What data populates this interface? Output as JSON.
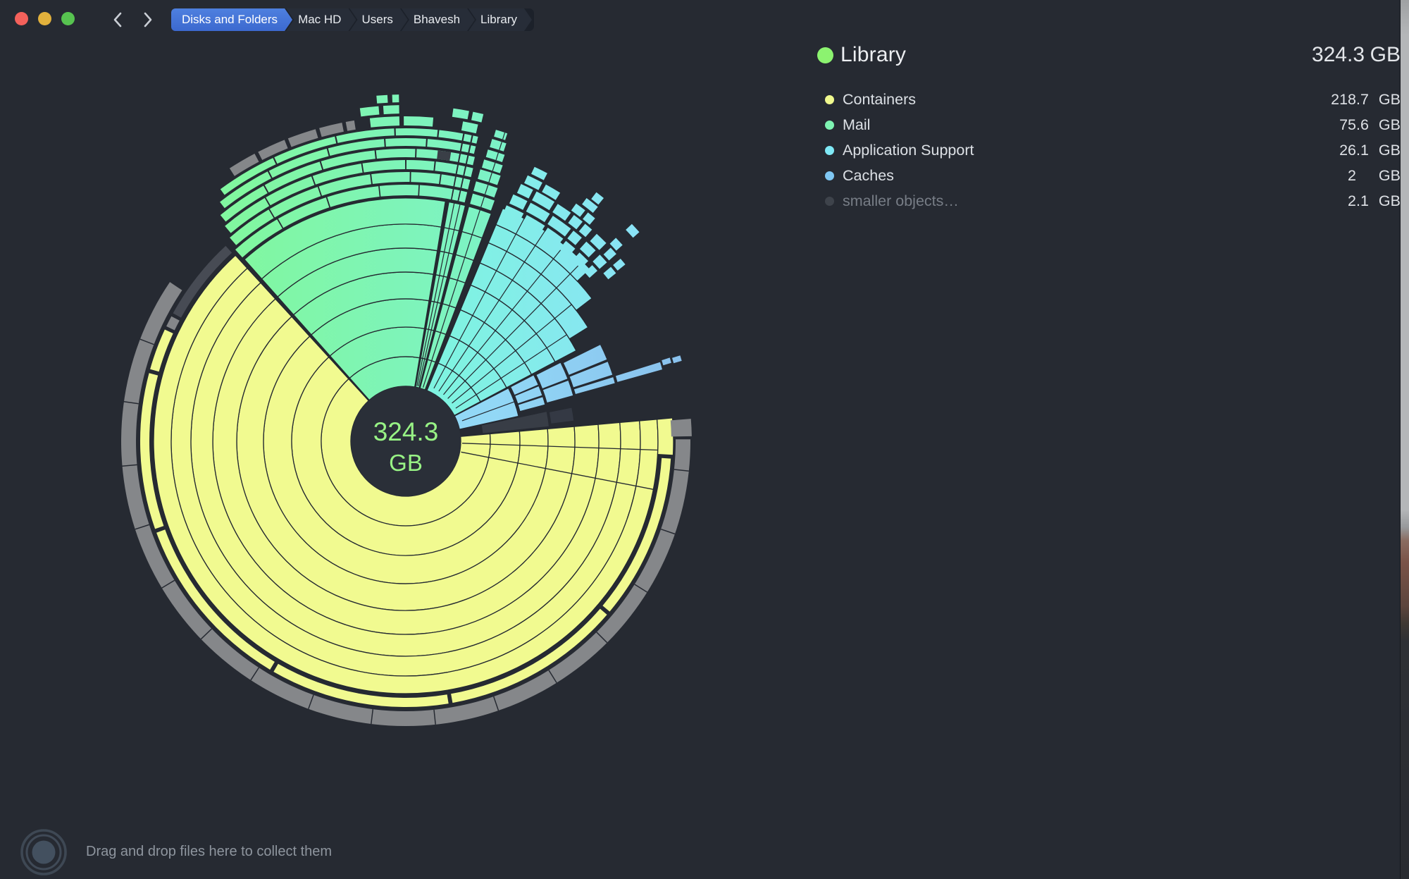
{
  "window": {
    "traffic_lights": {
      "close": "#F4615B",
      "minimize": "#E2B13C",
      "zoom": "#57C350"
    },
    "breadcrumb": [
      {
        "label": "Disks and Folders",
        "active": true
      },
      {
        "label": "Mac HD",
        "active": false
      },
      {
        "label": "Users",
        "active": false
      },
      {
        "label": "Bhavesh",
        "active": false
      },
      {
        "label": "Library",
        "active": false
      }
    ]
  },
  "legend": {
    "header": {
      "dot_color": "#8CF370",
      "label": "Library",
      "value_int": "324",
      "value_frac": ".3",
      "unit": "GB"
    },
    "items": [
      {
        "label": "Containers",
        "dot_color": "#F0F98E",
        "value_int": "218",
        "value_frac": ".7",
        "unit": "GB",
        "muted": false
      },
      {
        "label": "Mail",
        "dot_color": "#7EF3B2",
        "value_int": "75",
        "value_frac": ".6",
        "unit": "GB",
        "muted": false
      },
      {
        "label": "Application Support",
        "dot_color": "#7FE9F6",
        "value_int": "26",
        "value_frac": ".1",
        "unit": "GB",
        "muted": false
      },
      {
        "label": "Caches",
        "dot_color": "#7FC7F3",
        "value_int": "2",
        "value_frac": "",
        "unit": "GB",
        "muted": false
      },
      {
        "label": "smaller objects…",
        "dot_color": "#3E434B",
        "value_int": "2",
        "value_frac": ".1",
        "unit": "GB",
        "muted": true
      }
    ]
  },
  "chart_data": {
    "type": "sunburst",
    "title": "Library disk usage sunburst",
    "unit": "GB",
    "total": 324.3,
    "center_label": {
      "line1": "324.3",
      "line2": "GB",
      "color": "#98F385"
    },
    "items": [
      {
        "name": "Containers",
        "value": 218.7,
        "color": "#F1FA90",
        "color_end": "#F1FA90",
        "display_start_deg": 85,
        "display_end_deg": 317.5
      },
      {
        "name": "Mail",
        "value": 75.6,
        "color": "#81F7A0",
        "color_end": "#7BF1D2",
        "display_start_deg": 318.4,
        "display_end_deg": 380.5
      },
      {
        "name": "Application Support",
        "value": 26.1,
        "color": "#7FF3E1",
        "color_end": "#8BE1F8",
        "display_start_deg": 382.5,
        "display_end_deg": 422
      },
      {
        "name": "Caches",
        "value": 2,
        "color": "#92D8F6",
        "color_end": "#88BEEC",
        "display_start_deg": 422.6,
        "display_end_deg": 437.5
      },
      {
        "name": "smaller objects…",
        "value": 2.1,
        "color": "#383D46",
        "color_end": "#383D46",
        "display_start_deg": 438.2,
        "display_end_deg": 444
      }
    ],
    "legend_position": "top-right",
    "accents": {
      "outer_gray": "#85878A",
      "outer_dark_gray": "#474B54",
      "ring_line": "#232830",
      "background": "#262A32",
      "hub_fill": "#2A2F38",
      "hub_radius_px": 78
    }
  },
  "footer": {
    "message": "Drag and drop files here to collect them"
  }
}
